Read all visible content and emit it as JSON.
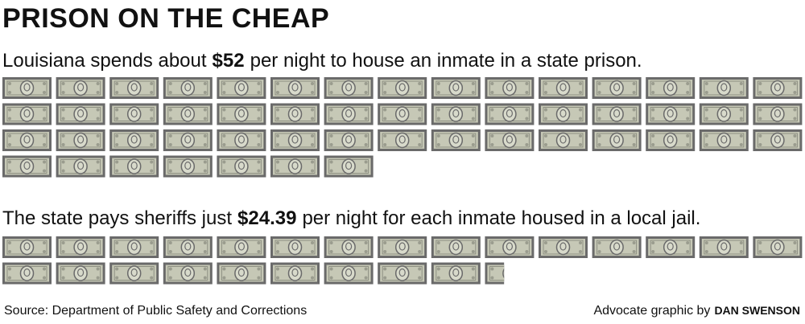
{
  "chart_data": {
    "type": "pictogram",
    "title": "PRISON ON THE CHEAP",
    "rows": [
      {
        "text_before": "Louisiana spends about",
        "value": 52,
        "value_label": "$52",
        "text_after": "per night to house an inmate in a state prison."
      },
      {
        "text_before": "The state pays sheriffs just",
        "value": 24.39,
        "value_label": "$24.39",
        "text_after": "per night for each inmate housed in a local jail."
      }
    ],
    "color": "#c6c8b6",
    "border_color": "#6a6a6a",
    "source": "Source: Department of Public Safety and Corrections",
    "credit": "Advocate graphic by",
    "credit_name": "DAN SWENSON"
  }
}
